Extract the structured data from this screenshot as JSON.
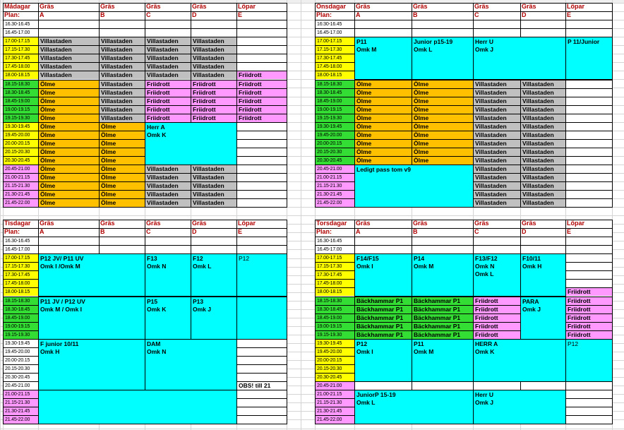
{
  "colors": {
    "slot_yellow": "#ffff00",
    "slot_green": "#33dd33",
    "slot_pink": "#ff99ff",
    "gray": "#c0c0c0",
    "orange": "#ffc000",
    "pink": "#ff99ff",
    "cyan": "#00ffff",
    "green": "#33dd33",
    "header_red": "#b00000"
  },
  "days": [
    {
      "id": "monday",
      "day_label": "Mådagar",
      "plan_label": "Plan:",
      "surfaces": [
        "Gräs",
        "Gräs",
        "Gräs",
        "Gräs",
        "Löpar"
      ],
      "fields": [
        "A",
        "B",
        "C",
        "D",
        "E"
      ],
      "slots": [
        {
          "t": "16.30-16.45",
          "c": ""
        },
        {
          "t": "16.45-17.00",
          "c": ""
        },
        {
          "t": "17.00-17.15",
          "c": "yellow"
        },
        {
          "t": "17.15-17.30",
          "c": "yellow"
        },
        {
          "t": "17.30-17.45",
          "c": "yellow"
        },
        {
          "t": "17.45-18.00",
          "c": "yellow"
        },
        {
          "t": "18.00-18.15",
          "c": "yellow"
        },
        {
          "t": "18.15-18.30",
          "c": "green"
        },
        {
          "t": "18.30-18.45",
          "c": "green"
        },
        {
          "t": "18.45-19.00",
          "c": "green"
        },
        {
          "t": "19.00-19.15",
          "c": "green"
        },
        {
          "t": "19.15-19.30",
          "c": "green"
        },
        {
          "t": "19.30-19.45",
          "c": "yellow"
        },
        {
          "t": "19.45-20.00",
          "c": "yellow"
        },
        {
          "t": "20.00-20.15",
          "c": "yellow"
        },
        {
          "t": "20.15-20.30",
          "c": "yellow"
        },
        {
          "t": "20.30-20.45",
          "c": "yellow"
        },
        {
          "t": "20.45-21.00",
          "c": "pink"
        },
        {
          "t": "21.00-21.15",
          "c": "pink"
        },
        {
          "t": "21.15-21.30",
          "c": "pink"
        },
        {
          "t": "21.30-21.45",
          "c": "pink"
        },
        {
          "t": "21.45-22.00",
          "c": "pink"
        }
      ],
      "cells": [
        {
          "col": 1,
          "r0": 2,
          "r1": 6,
          "text": "Villastaden",
          "color": "gray"
        },
        {
          "col": 2,
          "r0": 2,
          "r1": 6,
          "text": "Villastaden",
          "color": "gray"
        },
        {
          "col": 3,
          "r0": 2,
          "r1": 6,
          "text": "Villastaden",
          "color": "gray"
        },
        {
          "col": 4,
          "r0": 2,
          "r1": 6,
          "text": "Villastaden",
          "color": "gray"
        },
        {
          "col": 5,
          "r0": 6,
          "r1": 6,
          "text": "Friidrott",
          "color": "pink"
        },
        {
          "col": 1,
          "r0": 7,
          "r1": 21,
          "text": "Ölme",
          "color": "orange"
        },
        {
          "col": 2,
          "r0": 7,
          "r1": 11,
          "text": "Villastaden",
          "color": "gray"
        },
        {
          "col": 3,
          "r0": 7,
          "r1": 11,
          "text": "Friidrott",
          "color": "pink"
        },
        {
          "col": 4,
          "r0": 7,
          "r1": 11,
          "text": "Friidrott",
          "color": "pink"
        },
        {
          "col": 5,
          "r0": 7,
          "r1": 11,
          "text": "Friidrott",
          "color": "pink"
        },
        {
          "col": 2,
          "r0": 12,
          "r1": 21,
          "text": "Ölme",
          "color": "orange"
        },
        {
          "col": 3,
          "r0": 17,
          "r1": 21,
          "text": "Villastaden",
          "color": "gray"
        },
        {
          "col": 4,
          "r0": 17,
          "r1": 21,
          "text": "Villastaden",
          "color": "gray"
        }
      ],
      "blocks": [
        {
          "c0": 3,
          "c1": 4,
          "r0": 12,
          "r1": 16,
          "lines": [
            "Herr A",
            "Omk K"
          ]
        }
      ]
    },
    {
      "id": "wednesday",
      "day_label": "Onsdagar",
      "plan_label": "Plan:",
      "surfaces": [
        "Gräs",
        "Gräs",
        "Gräs",
        "Gräs",
        "Löpar"
      ],
      "fields": [
        "A",
        "B",
        "C",
        "D",
        "E"
      ],
      "slots": [
        {
          "t": "16:30-16.45",
          "c": ""
        },
        {
          "t": "16.45-17.00",
          "c": ""
        },
        {
          "t": "17.00-17.15",
          "c": "yellow"
        },
        {
          "t": "17.15-17.30",
          "c": "yellow"
        },
        {
          "t": "17.30-17.45",
          "c": "yellow"
        },
        {
          "t": "17.45-18.00",
          "c": "yellow"
        },
        {
          "t": "18.00-18.15",
          "c": "yellow"
        },
        {
          "t": "18.15-18.30",
          "c": "green"
        },
        {
          "t": "18.30-18.45",
          "c": "green"
        },
        {
          "t": "18.45-19.00",
          "c": "green"
        },
        {
          "t": "19.00-19.15",
          "c": "green"
        },
        {
          "t": "19.15-19.30",
          "c": "green"
        },
        {
          "t": "19.30-19.45",
          "c": "green"
        },
        {
          "t": "19.45-20.00",
          "c": "green"
        },
        {
          "t": "20.00-20.15",
          "c": "green"
        },
        {
          "t": "20.15-20.30",
          "c": "green"
        },
        {
          "t": "20.30-20.45",
          "c": "green"
        },
        {
          "t": "20.45-21.00",
          "c": "pink"
        },
        {
          "t": "21.00-21.15",
          "c": "pink"
        },
        {
          "t": "21.15-21.30",
          "c": "pink"
        },
        {
          "t": "21.30-21.45",
          "c": "pink"
        },
        {
          "t": "21.45-22.00",
          "c": "pink"
        }
      ],
      "cells": [
        {
          "col": 1,
          "r0": 7,
          "r1": 16,
          "text": "Ölme",
          "color": "orange"
        },
        {
          "col": 2,
          "r0": 7,
          "r1": 16,
          "text": "Ölme",
          "color": "orange"
        },
        {
          "col": 3,
          "r0": 7,
          "r1": 21,
          "text": "Villastaden",
          "color": "gray"
        },
        {
          "col": 4,
          "r0": 7,
          "r1": 21,
          "text": "Villastaden",
          "color": "gray"
        }
      ],
      "blocks": [
        {
          "c0": 1,
          "c1": 1,
          "r0": 2,
          "r1": 6,
          "lines": [
            "P11",
            "Omk M"
          ]
        },
        {
          "c0": 2,
          "c1": 2,
          "r0": 2,
          "r1": 6,
          "lines": [
            "Junior p15-19",
            "Omk L"
          ]
        },
        {
          "c0": 3,
          "c1": 4,
          "r0": 2,
          "r1": 6,
          "lines": [
            "Herr U",
            "Omk J"
          ]
        },
        {
          "c0": 5,
          "c1": 5,
          "r0": 2,
          "r1": 6,
          "lines": [
            "P 11/Junior"
          ]
        },
        {
          "c0": 1,
          "c1": 2,
          "r0": 17,
          "r1": 21,
          "lines": [
            "Ledigt pass tom v9"
          ]
        }
      ]
    },
    {
      "id": "tuesday",
      "day_label": "Tisdagar",
      "plan_label": "Plan:",
      "surfaces": [
        "Gräs",
        "Gräs",
        "Gräs",
        "Gräs",
        "Löpar"
      ],
      "fields": [
        "A",
        "B",
        "C",
        "D",
        "E"
      ],
      "slots": [
        {
          "t": "16.30-16.45",
          "c": ""
        },
        {
          "t": "16.45-17.00",
          "c": ""
        },
        {
          "t": "17.00-17.15",
          "c": "yellow"
        },
        {
          "t": "17.15-17.30",
          "c": "yellow"
        },
        {
          "t": "17.30-17.45",
          "c": "yellow"
        },
        {
          "t": "17.45-18.00",
          "c": "yellow"
        },
        {
          "t": "18.00-18.15",
          "c": "yellow"
        },
        {
          "t": "18.15-18.30",
          "c": "green"
        },
        {
          "t": "18.30-18.45",
          "c": "green"
        },
        {
          "t": "18.45-19.00",
          "c": "green"
        },
        {
          "t": "19.00-19.15",
          "c": "green"
        },
        {
          "t": "19.15-19.30",
          "c": "green"
        },
        {
          "t": "19.30-19.45",
          "c": ""
        },
        {
          "t": "19.45-20.00",
          "c": ""
        },
        {
          "t": "20.00-20.15",
          "c": ""
        },
        {
          "t": "20.15-20.30",
          "c": ""
        },
        {
          "t": "20.30-20.45",
          "c": ""
        },
        {
          "t": "20.45-21.00",
          "c": ""
        },
        {
          "t": "21.00-21.15",
          "c": "pink"
        },
        {
          "t": "21.15-21.30",
          "c": "pink"
        },
        {
          "t": "21.30-21.45",
          "c": "pink"
        },
        {
          "t": "21.45-22.00",
          "c": "pink"
        }
      ],
      "cells": [],
      "blocks": [
        {
          "c0": 1,
          "c1": 2,
          "r0": 2,
          "r1": 6,
          "lines": [
            "P12 JV/ P11 UV",
            "Omk I /Omk M"
          ]
        },
        {
          "c0": 3,
          "c1": 3,
          "r0": 2,
          "r1": 6,
          "lines": [
            "F13",
            "Omk N"
          ]
        },
        {
          "c0": 4,
          "c1": 4,
          "r0": 2,
          "r1": 6,
          "lines": [
            "F12",
            "Omk L"
          ]
        },
        {
          "c0": 5,
          "c1": 5,
          "r0": 2,
          "r1": 6,
          "lines": [
            "P12"
          ],
          "plain": true
        },
        {
          "c0": 1,
          "c1": 2,
          "r0": 7,
          "r1": 11,
          "lines": [
            "P11 JV / P12 UV",
            "Omk M / Omk I"
          ]
        },
        {
          "c0": 3,
          "c1": 3,
          "r0": 7,
          "r1": 11,
          "lines": [
            "P15",
            "Omk K"
          ]
        },
        {
          "c0": 4,
          "c1": 4,
          "r0": 7,
          "r1": 11,
          "lines": [
            "P13",
            "Omk J"
          ]
        },
        {
          "c0": 5,
          "c1": 5,
          "r0": 7,
          "r1": 11,
          "lines": []
        },
        {
          "c0": 1,
          "c1": 2,
          "r0": 12,
          "r1": 17,
          "lines": [
            "F junior 10/11",
            "Omk H"
          ]
        },
        {
          "c0": 3,
          "c1": 4,
          "r0": 12,
          "r1": 17,
          "lines": [
            "DAM",
            "Omk N"
          ]
        },
        {
          "c0": 1,
          "c1": 4,
          "r0": 18,
          "r1": 21,
          "lines": []
        }
      ],
      "notes": [
        {
          "col": 5,
          "row": 17,
          "text": "OBS! till 21"
        }
      ]
    },
    {
      "id": "thursday",
      "day_label": "Torsdagar",
      "plan_label": "Plan:",
      "surfaces": [
        "Gräs",
        "Gräs",
        "Gräs",
        "Gräs",
        "Löpar"
      ],
      "fields": [
        "A",
        "B",
        "C",
        "D",
        "E"
      ],
      "slots": [
        {
          "t": "16.30-16.45",
          "c": ""
        },
        {
          "t": "16.45-17.00",
          "c": ""
        },
        {
          "t": "17.00-17.15",
          "c": "yellow"
        },
        {
          "t": "17.15-17.30",
          "c": "yellow"
        },
        {
          "t": "17.30-17.45",
          "c": "yellow"
        },
        {
          "t": "17.45-18.00",
          "c": "yellow"
        },
        {
          "t": "18.00-18.15",
          "c": "yellow"
        },
        {
          "t": "18.15-18.30",
          "c": "green"
        },
        {
          "t": "18.30-18.45",
          "c": "green"
        },
        {
          "t": "18.45-19.00",
          "c": "green"
        },
        {
          "t": "19.00-19.15",
          "c": "green"
        },
        {
          "t": "19.15-19.30",
          "c": "green"
        },
        {
          "t": "19.30-19.45",
          "c": "yellow"
        },
        {
          "t": "19.45-20.00",
          "c": "yellow"
        },
        {
          "t": "20.00-20.15",
          "c": "yellow"
        },
        {
          "t": "20.15-20.30",
          "c": "yellow"
        },
        {
          "t": "20.30-20.45",
          "c": "yellow"
        },
        {
          "t": "20.45-21.00",
          "c": "pink"
        },
        {
          "t": "21.00-21.15",
          "c": "pink"
        },
        {
          "t": "21.15-21.30",
          "c": "pink"
        },
        {
          "t": "21.30-21.45",
          "c": "pink"
        },
        {
          "t": "21.45-22.00",
          "c": "pink"
        }
      ],
      "cells": [
        {
          "col": 5,
          "r0": 6,
          "r1": 11,
          "text": "Friidrott",
          "color": "pink"
        },
        {
          "col": 1,
          "r0": 7,
          "r1": 11,
          "text": "Bäckhammar P1",
          "color": "green"
        },
        {
          "col": 2,
          "r0": 7,
          "r1": 11,
          "text": "Bäckhammar P1",
          "color": "green"
        },
        {
          "col": 3,
          "r0": 7,
          "r1": 11,
          "text": "Friidrott",
          "color": "pink"
        }
      ],
      "blocks": [
        {
          "c0": 1,
          "c1": 1,
          "r0": 2,
          "r1": 6,
          "lines": [
            "F14/F15",
            "Omk I"
          ]
        },
        {
          "c0": 2,
          "c1": 2,
          "r0": 2,
          "r1": 6,
          "lines": [
            "P14",
            "Omk M"
          ]
        },
        {
          "c0": 3,
          "c1": 3,
          "r0": 2,
          "r1": 6,
          "lines": [
            "F13/F12",
            "Omk N",
            "Omk L"
          ]
        },
        {
          "c0": 4,
          "c1": 4,
          "r0": 2,
          "r1": 6,
          "lines": [
            "F10/11",
            "Omk H"
          ]
        },
        {
          "c0": 4,
          "c1": 4,
          "r0": 7,
          "r1": 11,
          "lines": [
            "PARA",
            "Omk J"
          ]
        },
        {
          "c0": 1,
          "c1": 1,
          "r0": 12,
          "r1": 16,
          "lines": [
            "P12",
            "Omk I"
          ]
        },
        {
          "c0": 2,
          "c1": 2,
          "r0": 12,
          "r1": 16,
          "lines": [
            "P11",
            "Omk M"
          ]
        },
        {
          "c0": 3,
          "c1": 4,
          "r0": 12,
          "r1": 16,
          "lines": [
            "HERR A",
            "Omk K"
          ]
        },
        {
          "c0": 5,
          "c1": 5,
          "r0": 12,
          "r1": 16,
          "lines": [
            "P12"
          ],
          "plain": true
        },
        {
          "c0": 1,
          "c1": 2,
          "r0": 18,
          "r1": 21,
          "lines": [
            "JuniorP 15-19",
            "Omk L"
          ]
        },
        {
          "c0": 3,
          "c1": 4,
          "r0": 18,
          "r1": 21,
          "lines": [
            "Herr U",
            "Omk J"
          ]
        }
      ]
    }
  ]
}
